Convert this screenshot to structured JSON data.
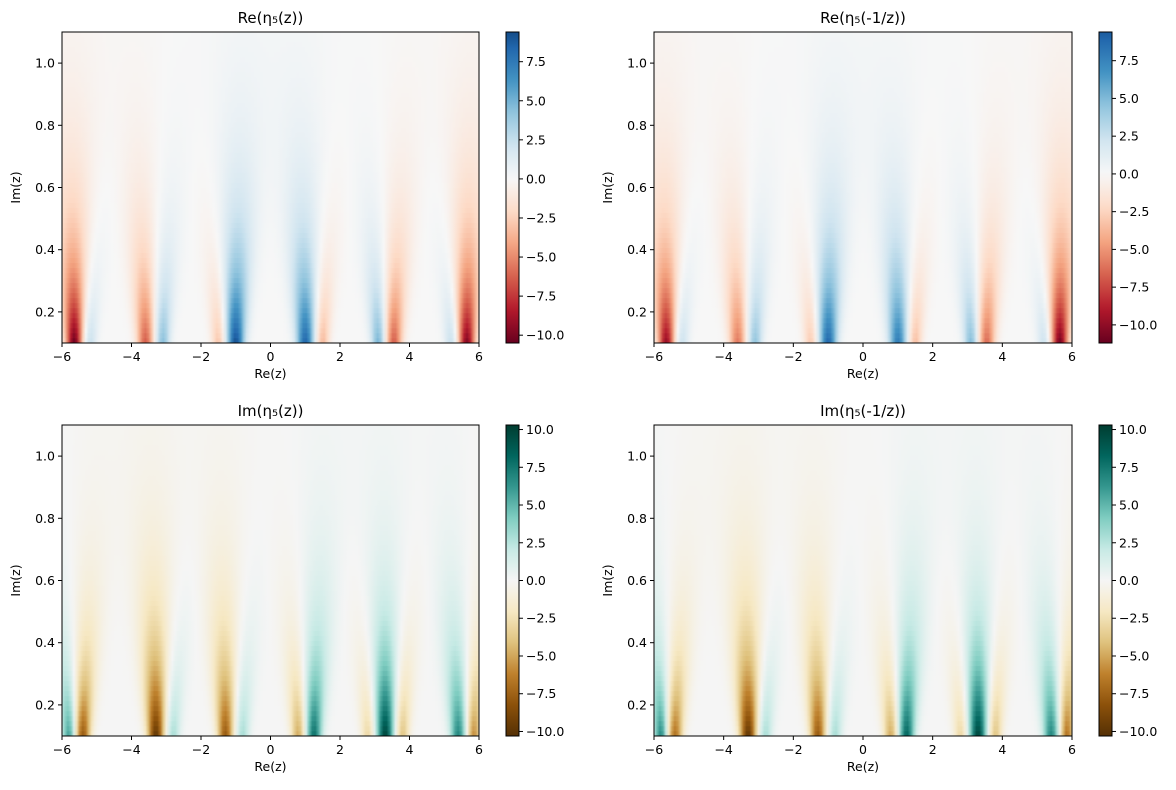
{
  "chart_data": [
    {
      "type": "heatmap",
      "title": "Re(η₅(z))",
      "xlabel": "Re(z)",
      "ylabel": "Im(z)",
      "xlim": [
        -6,
        6
      ],
      "ylim": [
        0.1,
        1.1
      ],
      "xticks": [
        -6,
        -4,
        -2,
        0,
        2,
        4,
        6
      ],
      "xtick_labels": [
        "−6",
        "−4",
        "−2",
        "0",
        "2",
        "4",
        "6"
      ],
      "yticks": [
        0.2,
        0.4,
        0.6,
        0.8,
        1.0
      ],
      "ytick_labels": [
        "0.2",
        "0.4",
        "0.6",
        "0.8",
        "1.0"
      ],
      "colormap": "RdBu",
      "colorbar": {
        "range": [
          -10.5,
          9.4
        ],
        "ticks": [
          7.5,
          5.0,
          2.5,
          0.0,
          -2.5,
          -5.0,
          -7.5,
          -10.0
        ],
        "tick_labels": [
          "7.5",
          "5.0",
          "2.5",
          "0.0",
          "−2.5",
          "−5.0",
          "−7.5",
          "−10.0"
        ]
      },
      "features": [
        {
          "x": -5.65,
          "amp": -10.5,
          "w": 0.16
        },
        {
          "x": -5.2,
          "amp": 2.5,
          "w": 0.13
        },
        {
          "x": -3.6,
          "amp": -6.5,
          "w": 0.16
        },
        {
          "x": -3.1,
          "amp": 4.5,
          "w": 0.14
        },
        {
          "x": -1.5,
          "amp": -3.0,
          "w": 0.13
        },
        {
          "x": -1.0,
          "amp": 9.4,
          "w": 0.17
        },
        {
          "x": 1.0,
          "amp": 8.5,
          "w": 0.17
        },
        {
          "x": 1.5,
          "amp": -3.5,
          "w": 0.13
        },
        {
          "x": 3.1,
          "amp": 5.0,
          "w": 0.14
        },
        {
          "x": 3.55,
          "amp": -6.5,
          "w": 0.16
        },
        {
          "x": 5.2,
          "amp": 2.5,
          "w": 0.13
        },
        {
          "x": 5.65,
          "amp": -10.0,
          "w": 0.16
        }
      ]
    },
    {
      "type": "heatmap",
      "title": "Re(η₅(-1/z))",
      "xlabel": "Re(z)",
      "ylabel": "Im(z)",
      "xlim": [
        -6,
        6
      ],
      "ylim": [
        0.1,
        1.1
      ],
      "xticks": [
        -6,
        -4,
        -2,
        0,
        2,
        4,
        6
      ],
      "xtick_labels": [
        "−6",
        "−4",
        "−2",
        "0",
        "2",
        "4",
        "6"
      ],
      "yticks": [
        0.2,
        0.4,
        0.6,
        0.8,
        1.0
      ],
      "ytick_labels": [
        "0.2",
        "0.4",
        "0.6",
        "0.8",
        "1.0"
      ],
      "colormap": "RdBu",
      "colorbar": {
        "range": [
          -11.2,
          9.4
        ],
        "ticks": [
          7.5,
          5.0,
          2.5,
          0.0,
          -2.5,
          -5.0,
          -7.5,
          -10.0
        ],
        "tick_labels": [
          "7.5",
          "5.0",
          "2.5",
          "0.0",
          "−2.5",
          "−5.0",
          "−7.5",
          "−10.0"
        ]
      },
      "features": [
        {
          "x": -5.65,
          "amp": -10.0,
          "w": 0.16
        },
        {
          "x": -5.2,
          "amp": 2.5,
          "w": 0.13
        },
        {
          "x": -3.6,
          "amp": -6.0,
          "w": 0.16
        },
        {
          "x": -3.1,
          "amp": 4.5,
          "w": 0.14
        },
        {
          "x": -1.5,
          "amp": -3.0,
          "w": 0.13
        },
        {
          "x": -1.0,
          "amp": 9.0,
          "w": 0.17
        },
        {
          "x": 1.0,
          "amp": 8.0,
          "w": 0.17
        },
        {
          "x": 1.5,
          "amp": -3.5,
          "w": 0.13
        },
        {
          "x": 3.1,
          "amp": 5.0,
          "w": 0.14
        },
        {
          "x": 3.55,
          "amp": -6.5,
          "w": 0.16
        },
        {
          "x": 5.2,
          "amp": 2.5,
          "w": 0.13
        },
        {
          "x": 5.65,
          "amp": -11.0,
          "w": 0.16
        }
      ]
    },
    {
      "type": "heatmap",
      "title": "Im(η₅(z))",
      "xlabel": "Re(z)",
      "ylabel": "Im(z)",
      "xlim": [
        -6,
        6
      ],
      "ylim": [
        0.1,
        1.1
      ],
      "xticks": [
        -6,
        -4,
        -2,
        0,
        2,
        4,
        6
      ],
      "xtick_labels": [
        "−6",
        "−4",
        "−2",
        "0",
        "2",
        "4",
        "6"
      ],
      "yticks": [
        0.2,
        0.4,
        0.6,
        0.8,
        1.0
      ],
      "ytick_labels": [
        "0.2",
        "0.4",
        "0.6",
        "0.8",
        "1.0"
      ],
      "colormap": "BrBG",
      "colorbar": {
        "range": [
          -10.3,
          10.3
        ],
        "ticks": [
          10.0,
          7.5,
          5.0,
          2.5,
          0.0,
          -2.5,
          -5.0,
          -7.5,
          -10.0
        ],
        "tick_labels": [
          "10.0",
          "7.5",
          "5.0",
          "2.5",
          "0.0",
          "−2.5",
          "−5.0",
          "−7.5",
          "−10.0"
        ]
      },
      "features": [
        {
          "x": -5.8,
          "amp": 6.0,
          "w": 0.13
        },
        {
          "x": -5.4,
          "amp": -8.0,
          "w": 0.15
        },
        {
          "x": -3.3,
          "amp": -10.0,
          "w": 0.16
        },
        {
          "x": -2.8,
          "amp": 3.0,
          "w": 0.13
        },
        {
          "x": -1.3,
          "amp": -8.0,
          "w": 0.15
        },
        {
          "x": -0.8,
          "amp": 3.0,
          "w": 0.13
        },
        {
          "x": 0.8,
          "amp": -5.0,
          "w": 0.14
        },
        {
          "x": 1.25,
          "amp": 8.0,
          "w": 0.15
        },
        {
          "x": 2.8,
          "amp": -3.0,
          "w": 0.13
        },
        {
          "x": 3.3,
          "amp": 10.0,
          "w": 0.16
        },
        {
          "x": 3.8,
          "amp": -4.0,
          "w": 0.13
        },
        {
          "x": 5.4,
          "amp": 7.0,
          "w": 0.15
        },
        {
          "x": 5.85,
          "amp": -6.0,
          "w": 0.13
        }
      ]
    },
    {
      "type": "heatmap",
      "title": "Im(η₅(-1/z))",
      "xlabel": "Re(z)",
      "ylabel": "Im(z)",
      "xlim": [
        -6,
        6
      ],
      "ylim": [
        0.1,
        1.1
      ],
      "xticks": [
        -6,
        -4,
        -2,
        0,
        2,
        4,
        6
      ],
      "xtick_labels": [
        "−6",
        "−4",
        "−2",
        "0",
        "2",
        "4",
        "6"
      ],
      "yticks": [
        0.2,
        0.4,
        0.6,
        0.8,
        1.0
      ],
      "ytick_labels": [
        "0.2",
        "0.4",
        "0.6",
        "0.8",
        "1.0"
      ],
      "colormap": "BrBG",
      "colorbar": {
        "range": [
          -10.3,
          10.3
        ],
        "ticks": [
          10.0,
          7.5,
          5.0,
          2.5,
          0.0,
          -2.5,
          -5.0,
          -7.5,
          -10.0
        ],
        "tick_labels": [
          "10.0",
          "7.5",
          "5.0",
          "2.5",
          "0.0",
          "−2.5",
          "−5.0",
          "−7.5",
          "−10.0"
        ]
      },
      "features": [
        {
          "x": -5.8,
          "amp": 7.0,
          "w": 0.13
        },
        {
          "x": -5.4,
          "amp": -7.0,
          "w": 0.15
        },
        {
          "x": -3.3,
          "amp": -10.0,
          "w": 0.16
        },
        {
          "x": -2.8,
          "amp": 3.0,
          "w": 0.13
        },
        {
          "x": -1.3,
          "amp": -8.0,
          "w": 0.15
        },
        {
          "x": -0.8,
          "amp": 3.0,
          "w": 0.13
        },
        {
          "x": 0.8,
          "amp": -5.0,
          "w": 0.14
        },
        {
          "x": 1.25,
          "amp": 8.5,
          "w": 0.15
        },
        {
          "x": 2.8,
          "amp": -3.0,
          "w": 0.13
        },
        {
          "x": 3.3,
          "amp": 10.0,
          "w": 0.16
        },
        {
          "x": 3.8,
          "amp": -4.0,
          "w": 0.13
        },
        {
          "x": 5.4,
          "amp": 7.0,
          "w": 0.15
        },
        {
          "x": 5.85,
          "amp": -7.0,
          "w": 0.13
        }
      ]
    }
  ]
}
